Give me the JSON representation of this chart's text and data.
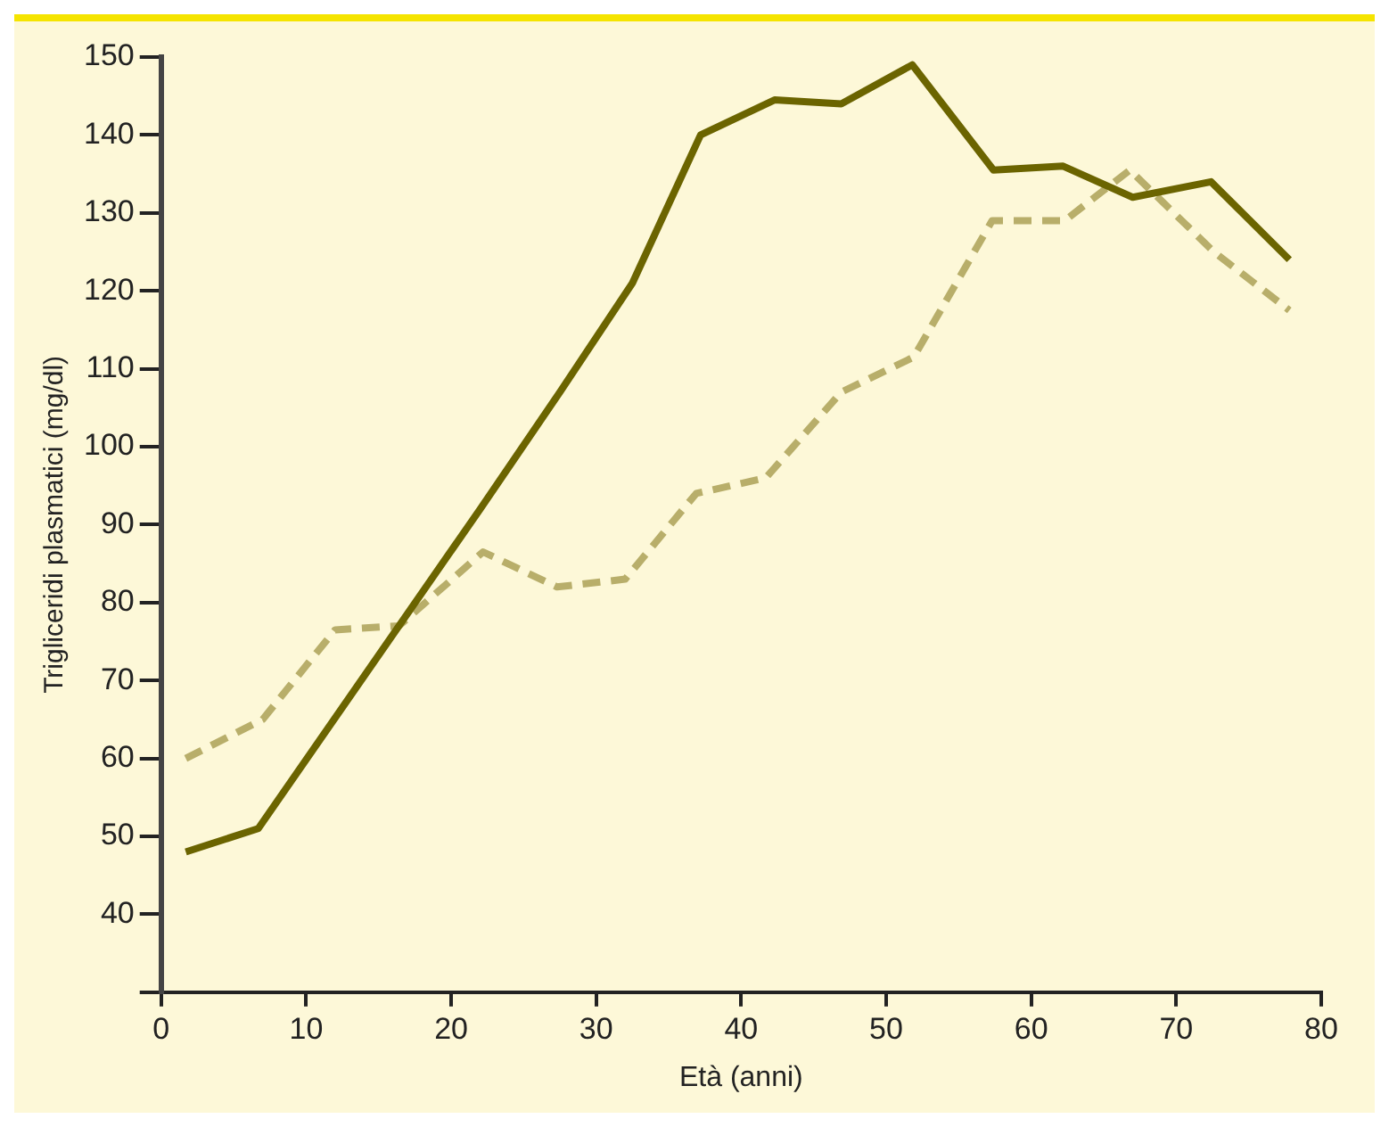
{
  "chart_data": {
    "type": "line",
    "xlabel": "Età (anni)",
    "ylabel": "Trigliceridi plasmatici (mg/dl)",
    "xlim": [
      0,
      80
    ],
    "xticks": [
      0,
      10,
      20,
      30,
      40,
      50,
      60,
      70,
      80
    ],
    "ylim": [
      30,
      150
    ],
    "yticks": [
      {
        "value": 30,
        "label": null
      },
      40,
      50,
      60,
      70,
      80,
      90,
      100,
      110,
      120,
      130,
      140,
      150
    ],
    "grid": false,
    "legend": false,
    "marker": "none",
    "series": [
      {
        "color": "#6b6400",
        "line_style": "solid",
        "x": [
          1.7,
          6.7,
          22,
          27.5,
          32.5,
          37.2,
          42.3,
          46.9,
          51.8,
          57.4,
          62.2,
          67,
          72.4,
          77.8
        ],
        "values": [
          48,
          51,
          92,
          107,
          121,
          140,
          144.5,
          144,
          149,
          135.5,
          136,
          132,
          134,
          124
        ]
      },
      {
        "color": "#b8ae6a",
        "line_style": "dashed",
        "x": [
          1.7,
          7,
          12,
          16.4,
          22.2,
          27.3,
          32,
          36.9,
          41.7,
          46.9,
          51.9,
          57.3,
          62.3,
          66.8,
          72.6,
          77.8
        ],
        "values": [
          60,
          65,
          76.5,
          77,
          86.5,
          82,
          83,
          94,
          96,
          107,
          111.5,
          129,
          129,
          135.5,
          125,
          117.5
        ]
      }
    ]
  }
}
